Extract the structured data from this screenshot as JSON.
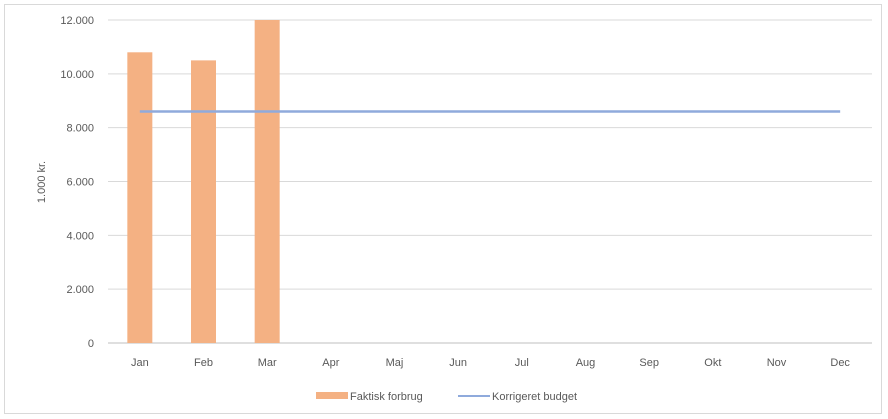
{
  "chart_data": {
    "type": "bar",
    "title": "",
    "xlabel": "",
    "ylabel": "1.000 kr.",
    "categories": [
      "Jan",
      "Feb",
      "Mar",
      "Apr",
      "Maj",
      "Jun",
      "Jul",
      "Aug",
      "Sep",
      "Okt",
      "Nov",
      "Dec"
    ],
    "ylim": [
      0,
      12000
    ],
    "yticks": [
      0,
      2000,
      4000,
      6000,
      8000,
      10000,
      12000
    ],
    "ytick_labels": [
      "0",
      "2.000",
      "4.000",
      "6.000",
      "8.000",
      "10.000",
      "12.000"
    ],
    "grid": true,
    "legend_position": "bottom",
    "series": [
      {
        "name": "Faktisk forbrug",
        "type": "bar",
        "color": "#f4b183",
        "values": [
          10800,
          10500,
          12000,
          null,
          null,
          null,
          null,
          null,
          null,
          null,
          null,
          null
        ]
      },
      {
        "name": "Korrigeret budget",
        "type": "line",
        "color": "#8faadc",
        "values": [
          8600,
          8600,
          8600,
          8600,
          8600,
          8600,
          8600,
          8600,
          8600,
          8600,
          8600,
          8600
        ]
      }
    ]
  }
}
